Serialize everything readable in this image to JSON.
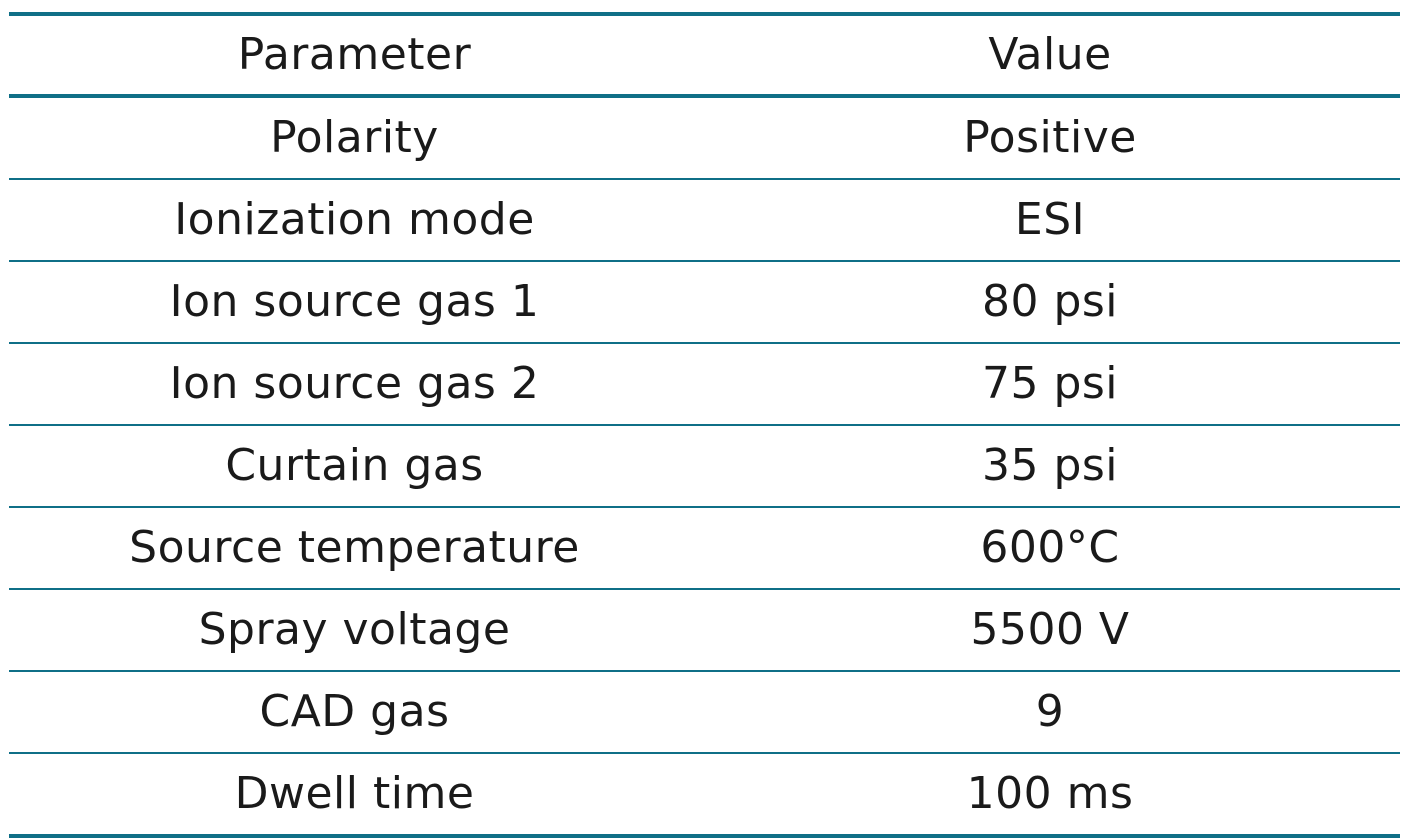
{
  "table": {
    "headers": [
      "Parameter",
      "Value"
    ],
    "rows": [
      [
        "Polarity",
        "Positive"
      ],
      [
        "Ionization mode",
        "ESI"
      ],
      [
        "Ion source gas 1",
        "80 psi"
      ],
      [
        "Ion source gas 2",
        "75 psi"
      ],
      [
        "Curtain gas",
        "35 psi"
      ],
      [
        "Source temperature",
        "600°C"
      ],
      [
        "Spray voltage",
        "5500 V"
      ],
      [
        "CAD gas",
        "9"
      ],
      [
        "Dwell time",
        "100 ms"
      ]
    ]
  },
  "colors": {
    "rule": "#0f6f87",
    "text": "#1a1a1a",
    "background": "#ffffff"
  }
}
